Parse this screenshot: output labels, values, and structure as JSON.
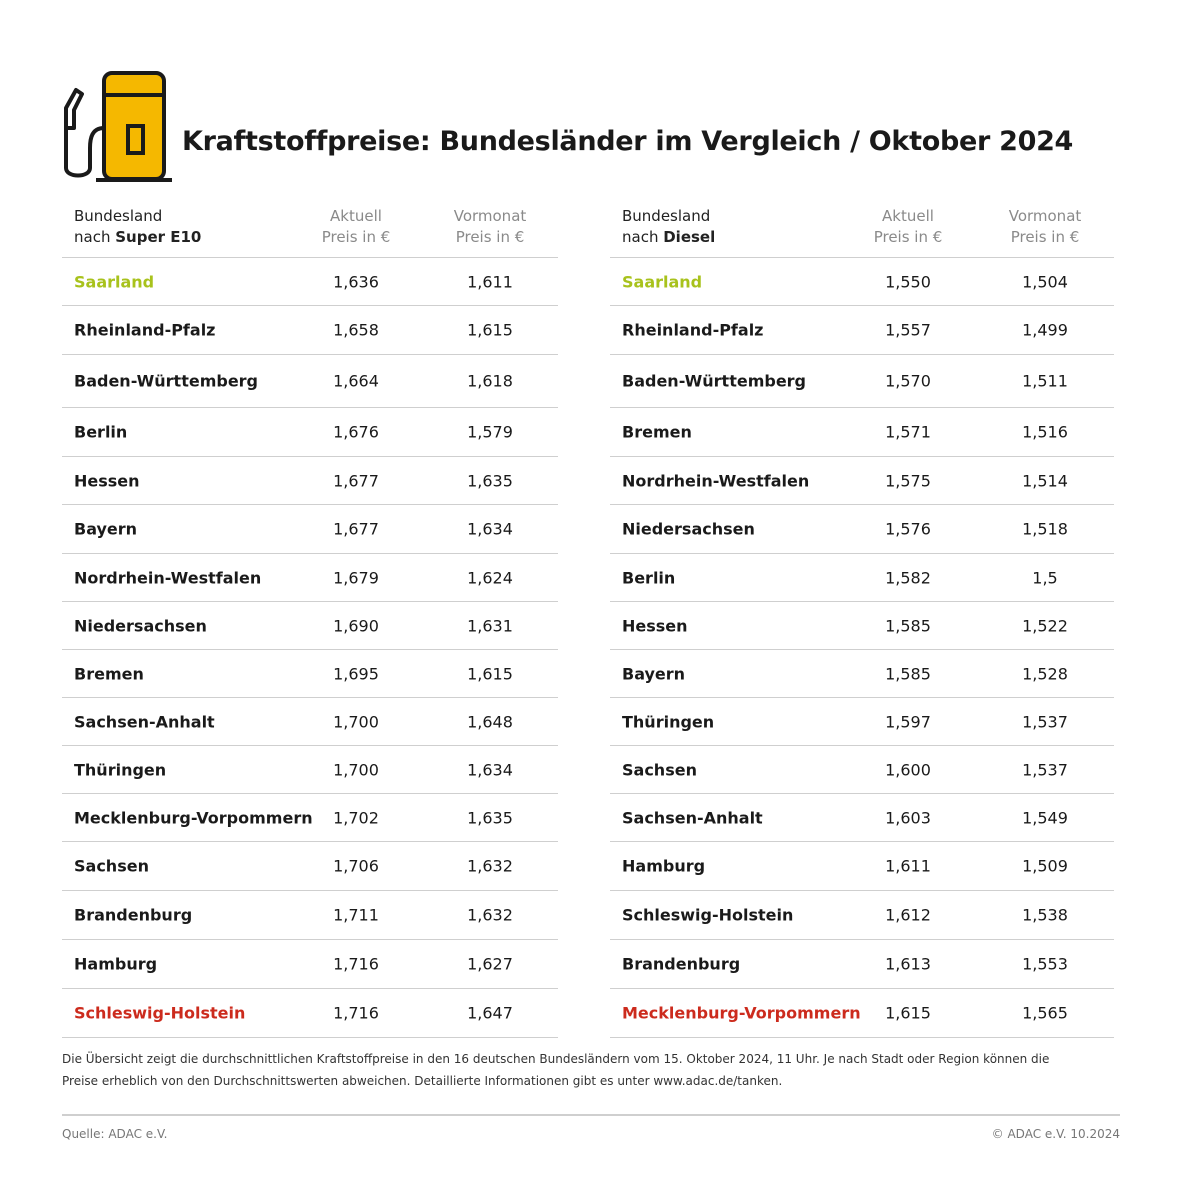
{
  "header": {
    "title": "Kraftstoffpreise: Bundesländer im Vergleich / Oktober 2024",
    "icon": "fuel-pump-icon"
  },
  "colors": {
    "accent_yellow": "#f5b800",
    "best": "#a8c21c",
    "worst": "#cc2b1d"
  },
  "table_e10": {
    "col_land_line1": "Bundesland",
    "col_land_line2_prefix": "nach ",
    "col_land_line2_bold": "Super E10",
    "col_current_line1": "Aktuell",
    "col_current_line2": "Preis in €",
    "col_prev_line1": "Vormonat",
    "col_prev_line2": "Preis in €",
    "rows": [
      {
        "land": "Saarland",
        "current": "1,636",
        "previous": "1,611",
        "status": "best"
      },
      {
        "land": "Rheinland-Pfalz",
        "current": "1,658",
        "previous": "1,615",
        "status": ""
      },
      {
        "land": "Baden-Württemberg",
        "current": "1,664",
        "previous": "1,618",
        "status": ""
      },
      {
        "land": "Berlin",
        "current": "1,676",
        "previous": "1,579",
        "status": ""
      },
      {
        "land": "Hessen",
        "current": "1,677",
        "previous": "1,635",
        "status": ""
      },
      {
        "land": "Bayern",
        "current": "1,677",
        "previous": "1,634",
        "status": ""
      },
      {
        "land": "Nordrhein-Westfalen",
        "current": "1,679",
        "previous": "1,624",
        "status": ""
      },
      {
        "land": "Niedersachsen",
        "current": "1,690",
        "previous": "1,631",
        "status": ""
      },
      {
        "land": "Bremen",
        "current": "1,695",
        "previous": "1,615",
        "status": ""
      },
      {
        "land": "Sachsen-Anhalt",
        "current": "1,700",
        "previous": "1,648",
        "status": ""
      },
      {
        "land": "Thüringen",
        "current": "1,700",
        "previous": "1,634",
        "status": ""
      },
      {
        "land": "Mecklenburg-Vorpommern",
        "current": "1,702",
        "previous": "1,635",
        "status": ""
      },
      {
        "land": "Sachsen",
        "current": "1,706",
        "previous": "1,632",
        "status": ""
      },
      {
        "land": "Brandenburg",
        "current": "1,711",
        "previous": "1,632",
        "status": ""
      },
      {
        "land": "Hamburg",
        "current": "1,716",
        "previous": "1,627",
        "status": ""
      },
      {
        "land": "Schleswig-Holstein",
        "current": "1,716",
        "previous": "1,647",
        "status": "worst"
      }
    ]
  },
  "table_diesel": {
    "col_land_line1": "Bundesland",
    "col_land_line2_prefix": "nach ",
    "col_land_line2_bold": "Diesel",
    "col_current_line1": "Aktuell",
    "col_current_line2": "Preis in €",
    "col_prev_line1": "Vormonat",
    "col_prev_line2": "Preis in €",
    "rows": [
      {
        "land": "Saarland",
        "current": "1,550",
        "previous": "1,504",
        "status": "best"
      },
      {
        "land": "Rheinland-Pfalz",
        "current": "1,557",
        "previous": "1,499",
        "status": ""
      },
      {
        "land": "Baden-Württemberg",
        "current": "1,570",
        "previous": "1,511",
        "status": ""
      },
      {
        "land": "Bremen",
        "current": "1,571",
        "previous": "1,516",
        "status": ""
      },
      {
        "land": "Nordrhein-Westfalen",
        "current": "1,575",
        "previous": "1,514",
        "status": ""
      },
      {
        "land": "Niedersachsen",
        "current": "1,576",
        "previous": "1,518",
        "status": ""
      },
      {
        "land": "Berlin",
        "current": "1,582",
        "previous": "1,5",
        "status": ""
      },
      {
        "land": "Hessen",
        "current": "1,585",
        "previous": "1,522",
        "status": ""
      },
      {
        "land": "Bayern",
        "current": "1,585",
        "previous": "1,528",
        "status": ""
      },
      {
        "land": "Thüringen",
        "current": "1,597",
        "previous": "1,537",
        "status": ""
      },
      {
        "land": "Sachsen",
        "current": "1,600",
        "previous": "1,537",
        "status": ""
      },
      {
        "land": "Sachsen-Anhalt",
        "current": "1,603",
        "previous": "1,549",
        "status": ""
      },
      {
        "land": "Hamburg",
        "current": "1,611",
        "previous": "1,509",
        "status": ""
      },
      {
        "land": "Schleswig-Holstein",
        "current": "1,612",
        "previous": "1,538",
        "status": ""
      },
      {
        "land": "Brandenburg",
        "current": "1,613",
        "previous": "1,553",
        "status": ""
      },
      {
        "land": "Mecklenburg-Vorpommern",
        "current": "1,615",
        "previous": "1,565",
        "status": "worst"
      }
    ]
  },
  "footer": {
    "note": "Die Übersicht zeigt die durchschnittlichen Kraftstoffpreise in den 16 deutschen Bundesländern vom 15. Oktober 2024, 11 Uhr. Je nach Stadt oder Region können die Preise erheblich von den Durchschnittswerten abweichen. Detaillierte Informationen gibt es unter www.adac.de/tanken.",
    "source": "Quelle: ADAC e.V.",
    "copyright": "© ADAC e.V. 10.2024"
  }
}
